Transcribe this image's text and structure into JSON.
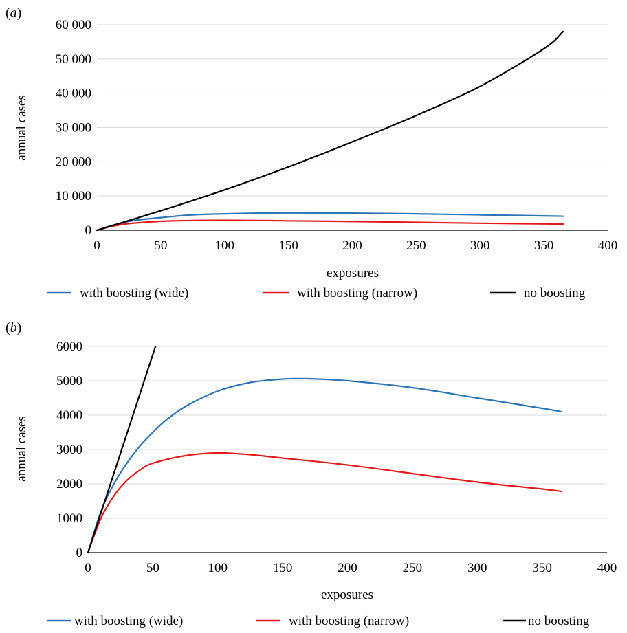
{
  "colors": {
    "wide": "#2e75b6",
    "narrow": "#e31a1c",
    "none": "#000000",
    "grid": "#d9d9d9"
  },
  "chart_data": [
    {
      "type": "line",
      "panel": "a",
      "title": "",
      "xlabel": "exposures",
      "ylabel": "annual cases",
      "xlim": [
        0,
        400
      ],
      "ylim": [
        0,
        60000
      ],
      "x_ticks": [
        "0",
        "50",
        "100",
        "150",
        "200",
        "250",
        "300",
        "350",
        "400"
      ],
      "y_ticks": [
        "0",
        "10 000",
        "20 000",
        "30 000",
        "40 000",
        "50 000",
        "60 000"
      ],
      "grid": "horizontal",
      "legend": "bottom",
      "series": [
        {
          "name": "with boosting (wide)",
          "color": "#2e75b6",
          "x": [
            0,
            10,
            20,
            30,
            50,
            75,
            100,
            125,
            150,
            175,
            200,
            250,
            300,
            350,
            365
          ],
          "y": [
            0,
            1200,
            2100,
            2900,
            3700,
            4500,
            4800,
            5000,
            5050,
            5040,
            5000,
            4800,
            4500,
            4200,
            4100
          ]
        },
        {
          "name": "with boosting (narrow)",
          "color": "#e31a1c",
          "x": [
            0,
            10,
            20,
            30,
            50,
            75,
            100,
            125,
            150,
            200,
            250,
            300,
            350,
            365
          ],
          "y": [
            0,
            1000,
            1700,
            2100,
            2600,
            2850,
            2900,
            2850,
            2750,
            2550,
            2300,
            2050,
            1850,
            1800
          ]
        },
        {
          "name": "no boosting",
          "color": "#000000",
          "x": [
            0,
            50,
            100,
            150,
            200,
            250,
            300,
            350,
            365
          ],
          "y": [
            0,
            5700,
            11800,
            18500,
            25800,
            33500,
            42000,
            53000,
            58000
          ]
        }
      ]
    },
    {
      "type": "line",
      "panel": "b",
      "title": "",
      "xlabel": "exposures",
      "ylabel": "annual cases",
      "xlim": [
        0,
        400
      ],
      "ylim": [
        0,
        6000
      ],
      "x_ticks": [
        "0",
        "50",
        "100",
        "150",
        "200",
        "250",
        "300",
        "350",
        "400"
      ],
      "y_ticks": [
        "0",
        "1000",
        "2000",
        "3000",
        "4000",
        "5000",
        "6000"
      ],
      "grid": "horizontal",
      "legend": "bottom",
      "series": [
        {
          "name": "with boosting (wide)",
          "color": "#2e75b6",
          "x": [
            0,
            10,
            20,
            30,
            40,
            50,
            60,
            75,
            100,
            125,
            150,
            170,
            200,
            250,
            300,
            350,
            365
          ],
          "y": [
            0,
            1200,
            2000,
            2600,
            3100,
            3500,
            3850,
            4250,
            4700,
            4950,
            5050,
            5060,
            5000,
            4800,
            4500,
            4200,
            4100
          ]
        },
        {
          "name": "with boosting (narrow)",
          "color": "#e31a1c",
          "x": [
            0,
            10,
            20,
            30,
            40,
            50,
            75,
            100,
            125,
            150,
            200,
            250,
            300,
            350,
            365
          ],
          "y": [
            0,
            1000,
            1650,
            2100,
            2400,
            2600,
            2820,
            2900,
            2850,
            2750,
            2550,
            2300,
            2050,
            1850,
            1780
          ]
        },
        {
          "name": "no boosting",
          "color": "#000000",
          "x": [
            0,
            52
          ],
          "y": [
            0,
            6000
          ]
        }
      ]
    }
  ],
  "panels": {
    "a": {
      "label_open": "(",
      "label_letter": "a",
      "label_close": ")"
    },
    "b": {
      "label_open": "(",
      "label_letter": "b",
      "label_close": ")"
    }
  }
}
